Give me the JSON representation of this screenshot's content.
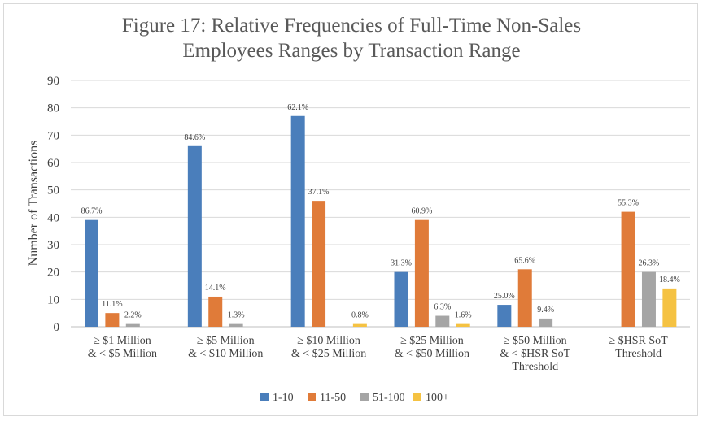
{
  "chart_data": {
    "type": "bar",
    "title_lines": [
      "Figure 17: Relative Frequencies of Full-Time Non-Sales",
      "Employees Ranges by Transaction Range"
    ],
    "ylabel": "Number of Transactions",
    "xlabel": "",
    "ylim": [
      0,
      90
    ],
    "yticks": [
      "0",
      "10",
      "20",
      "30",
      "40",
      "50",
      "60",
      "70",
      "80",
      "90"
    ],
    "grid": true,
    "legend_position": "bottom",
    "categories": [
      [
        "≥ $1 Million",
        "& < $5 Million"
      ],
      [
        "≥ $5 Million",
        "& < $10 Million"
      ],
      [
        "≥ $10 Million",
        "& < $25 Million"
      ],
      [
        "≥ $25 Million",
        "& < $50 Million"
      ],
      [
        "≥ $50 Million",
        "& < $HSR SoT",
        "Threshold"
      ],
      [
        "≥ $HSR SoT",
        "Threshold"
      ]
    ],
    "series": [
      {
        "name": "1-10",
        "color": "#4a7ebb",
        "values": [
          39,
          66,
          77,
          20,
          8,
          0
        ],
        "labels": [
          "86.7%",
          "84.6%",
          "62.1%",
          "31.3%",
          "25.0%",
          ""
        ]
      },
      {
        "name": "11-50",
        "color": "#e07b39",
        "values": [
          5,
          11,
          46,
          39,
          21,
          42
        ],
        "labels": [
          "11.1%",
          "14.1%",
          "37.1%",
          "60.9%",
          "65.6%",
          "55.3%"
        ]
      },
      {
        "name": "51-100",
        "color": "#a5a5a5",
        "values": [
          1,
          1,
          0,
          4,
          3,
          20
        ],
        "labels": [
          "2.2%",
          "1.3%",
          "",
          "6.3%",
          "9.4%",
          "26.3%"
        ]
      },
      {
        "name": "100+",
        "color": "#f5c242",
        "values": [
          0,
          0,
          1,
          1,
          0,
          14
        ],
        "labels": [
          "",
          "",
          "0.8%",
          "1.6%",
          "",
          "18.4%"
        ]
      }
    ]
  }
}
